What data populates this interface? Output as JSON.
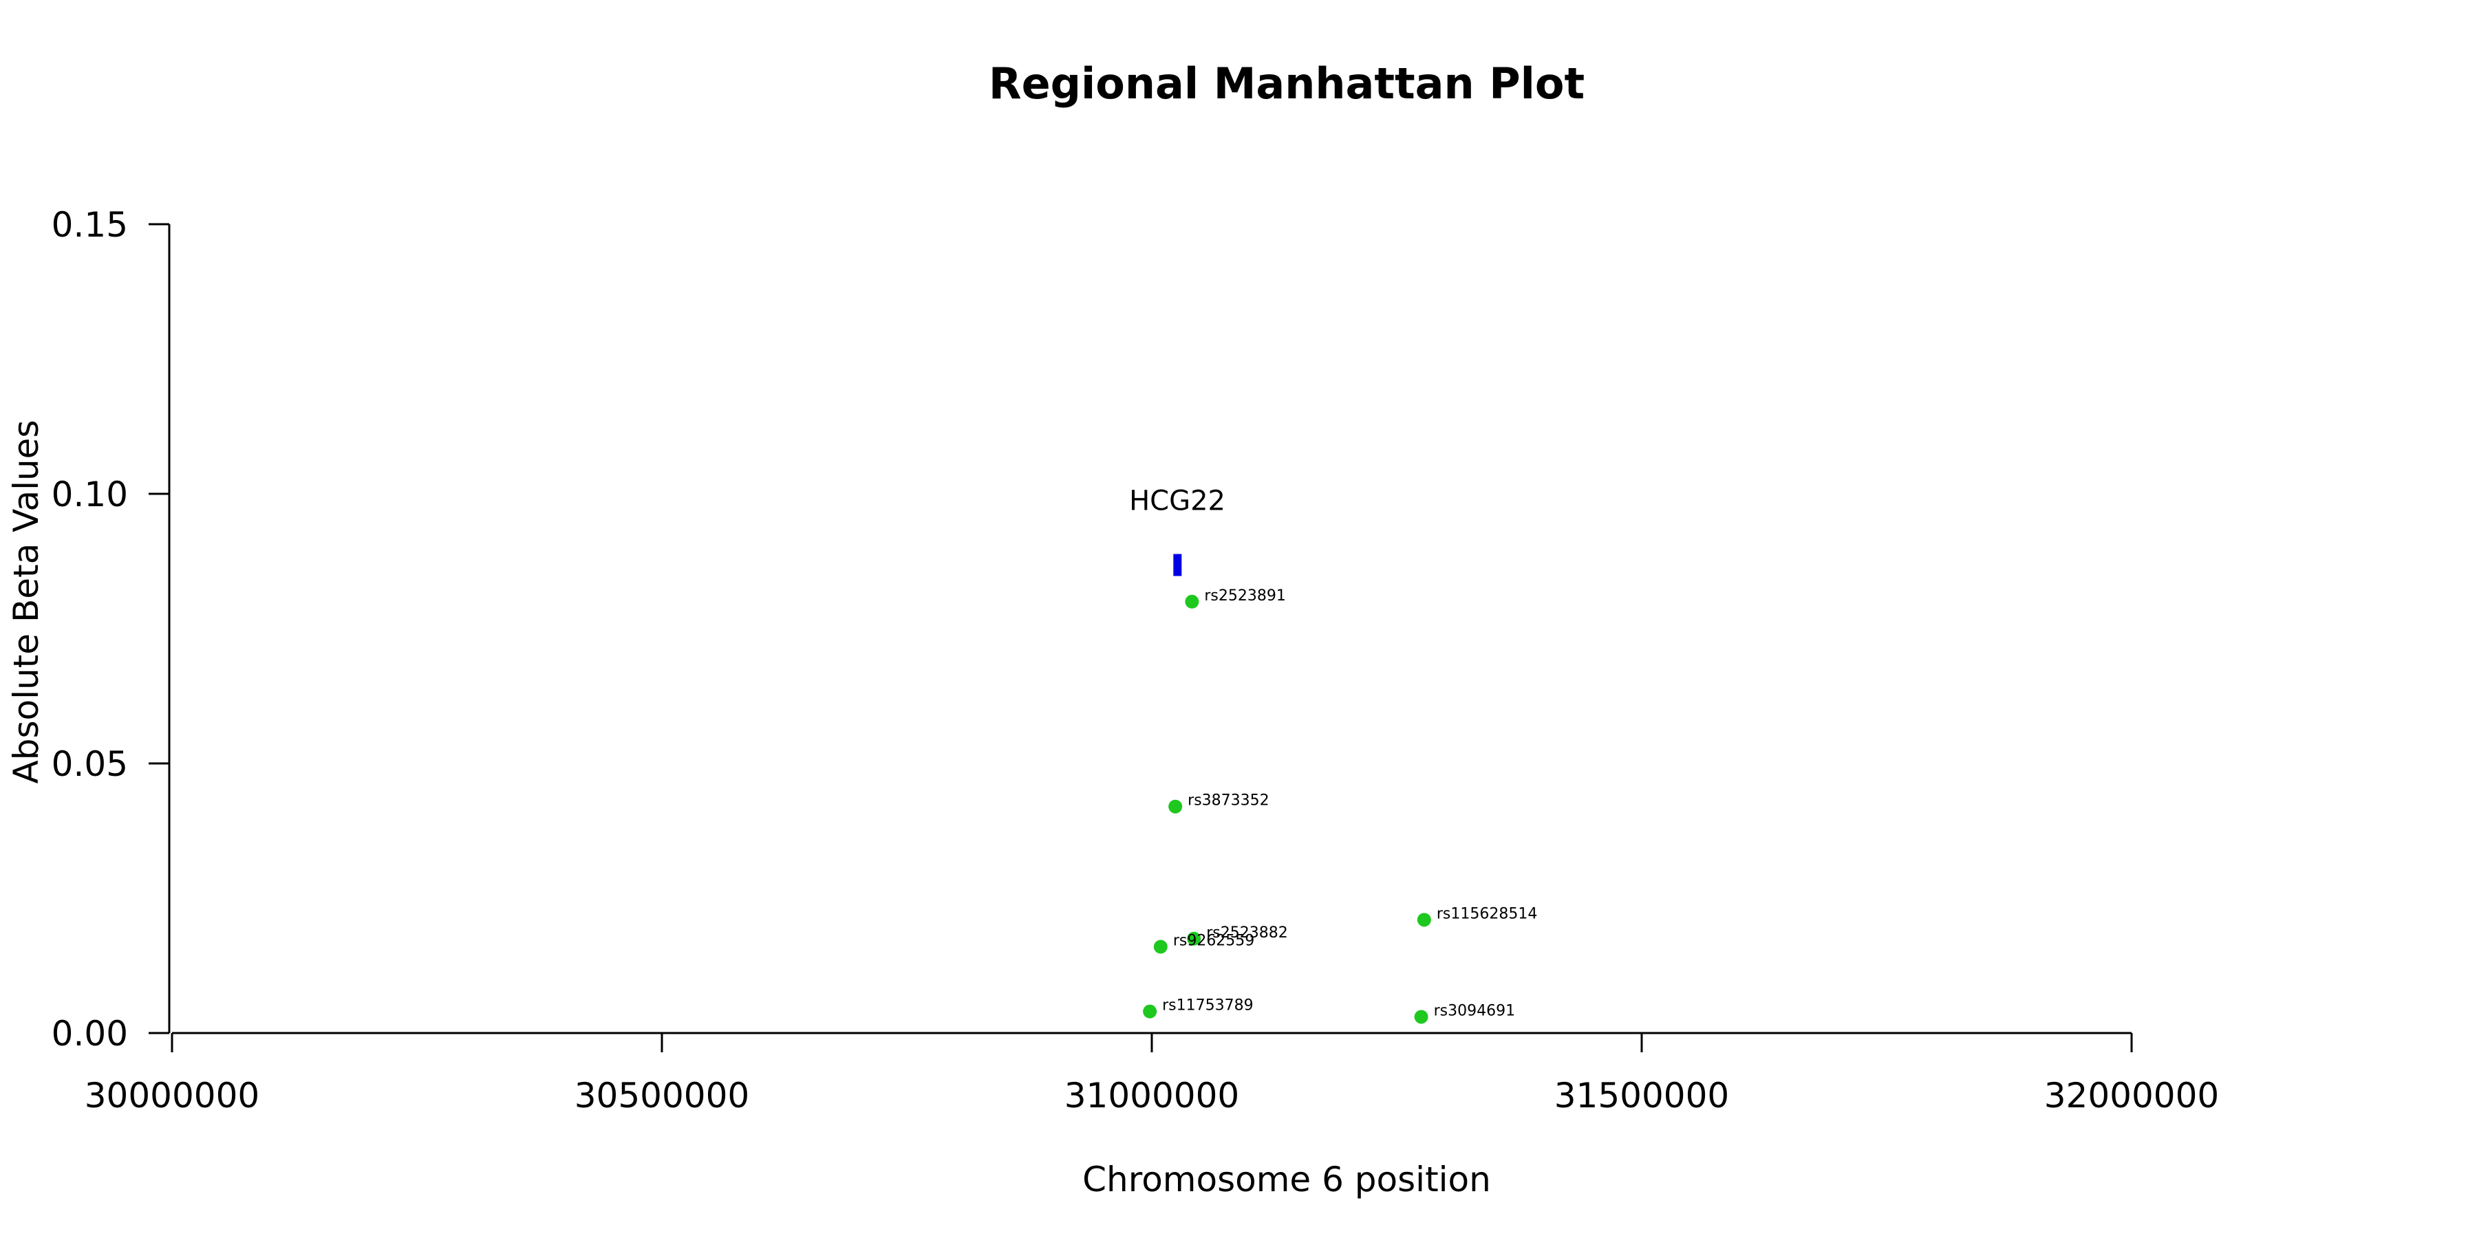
{
  "chart_data": {
    "type": "scatter",
    "title": "Regional Manhattan Plot",
    "xlabel": "Chromosome 6 position",
    "ylabel": "Absolute Beta Values",
    "xlim": [
      30000000,
      32000000
    ],
    "ylim": [
      0,
      0.15
    ],
    "x_ticks": [
      30000000,
      30500000,
      31000000,
      31500000,
      32000000
    ],
    "x_tick_labels": [
      "30000000",
      "30500000",
      "31000000",
      "31500000",
      "32000000"
    ],
    "y_ticks": [
      0,
      0.05,
      0.1,
      0.15
    ],
    "y_tick_labels": [
      "0.00",
      "0.05",
      "0.10",
      "0.15"
    ],
    "grid": false,
    "point_color": "#1ec81e",
    "points": [
      {
        "label": "rs2523891",
        "x": 31041000,
        "y": 0.08
      },
      {
        "label": "rs3873352",
        "x": 31024000,
        "y": 0.042
      },
      {
        "label": "rs115628514",
        "x": 31278000,
        "y": 0.021
      },
      {
        "label": "rs2523882",
        "x": 31043000,
        "y": 0.0175
      },
      {
        "label": "rs9262559",
        "x": 31009000,
        "y": 0.016
      },
      {
        "label": "rs11753789",
        "x": 30998000,
        "y": 0.004
      },
      {
        "label": "rs3094691",
        "x": 31275000,
        "y": 0.003
      }
    ],
    "genes": [
      {
        "name": "HCG22",
        "x_start": 31022000,
        "x_end": 31030000,
        "y": 0.0868,
        "color": "#0000e6"
      }
    ]
  }
}
